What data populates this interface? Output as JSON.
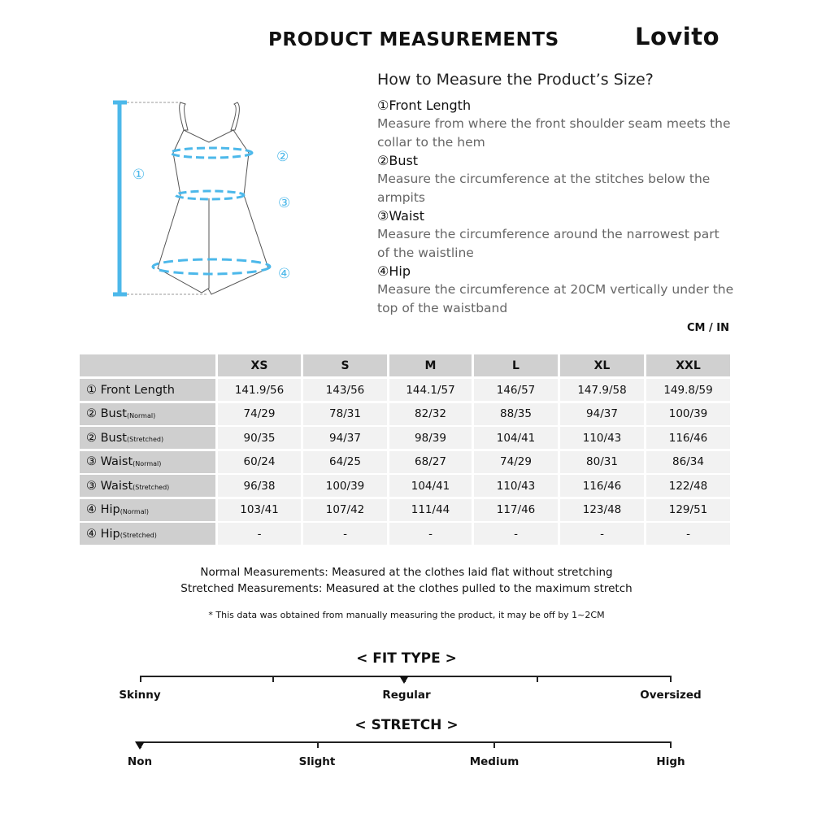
{
  "header": {
    "title": "PRODUCT MEASUREMENTS",
    "logo": "Lovito"
  },
  "guide": {
    "title": "How to Measure the Product’s Size?",
    "sections": [
      {
        "heading": "①Front Length",
        "text": "Measure from where the front shoulder seam meets the collar to the hem"
      },
      {
        "heading": "②Bust",
        "text": "Measure the circumference at the stitches below the armpits"
      },
      {
        "heading": "③Waist",
        "text": "Measure the circumference around the narrowest part of the waistline"
      },
      {
        "heading": "④Hip",
        "text": "Measure the circumference at 20CM vertically under the top of the waistband"
      }
    ],
    "diagram_labels": [
      "①",
      "②",
      "③",
      "④"
    ],
    "accent": "#4cb8ea"
  },
  "units": "CM / IN",
  "table": {
    "sizes": [
      "XS",
      "S",
      "M",
      "L",
      "XL",
      "XXL"
    ],
    "rows": [
      {
        "label": "① Front Length",
        "sub": "",
        "values": [
          "141.9/56",
          "143/56",
          "144.1/57",
          "146/57",
          "147.9/58",
          "149.8/59"
        ]
      },
      {
        "label": "② Bust",
        "sub": "(Normal)",
        "values": [
          "74/29",
          "78/31",
          "82/32",
          "88/35",
          "94/37",
          "100/39"
        ]
      },
      {
        "label": "② Bust",
        "sub": "(Stretched)",
        "values": [
          "90/35",
          "94/37",
          "98/39",
          "104/41",
          "110/43",
          "116/46"
        ]
      },
      {
        "label": "③ Waist",
        "sub": "(Normal)",
        "values": [
          "60/24",
          "64/25",
          "68/27",
          "74/29",
          "80/31",
          "86/34"
        ]
      },
      {
        "label": "③ Waist",
        "sub": "(Stretched)",
        "values": [
          "96/38",
          "100/39",
          "104/41",
          "110/43",
          "116/46",
          "122/48"
        ]
      },
      {
        "label": "④ Hip",
        "sub": "(Normal)",
        "values": [
          "103/41",
          "107/42",
          "111/44",
          "117/46",
          "123/48",
          "129/51"
        ]
      },
      {
        "label": "④ Hip",
        "sub": "(Stretched)",
        "values": [
          "-",
          "-",
          "-",
          "-",
          "-",
          "-"
        ]
      }
    ]
  },
  "notes": {
    "normal": "Normal Measurements: Measured at the clothes laid flat without stretching",
    "stretched": "Stretched  Measurements: Measured at the clothes pulled to the maximum stretch",
    "disclaimer": "* This data was obtained from manually measuring the product, it may be off by 1~2CM"
  },
  "fit_type": {
    "title": "< FIT TYPE >",
    "labels": [
      "Skinny",
      "Regular",
      "Oversized"
    ],
    "selected": "Regular"
  },
  "stretch": {
    "title": "< STRETCH >",
    "labels": [
      "Non",
      "Slight",
      "Medium",
      "High"
    ],
    "selected": "Non"
  }
}
